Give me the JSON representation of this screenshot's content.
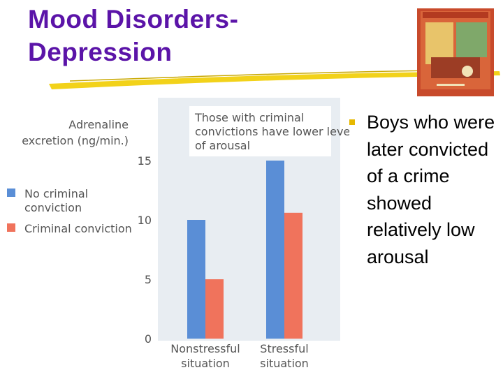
{
  "slide": {
    "title_line1": "Mood Disorders-",
    "title_line2": "Depression",
    "bullet": "Boys who were later convicted of a crime showed relatively low arousal"
  },
  "colors": {
    "title": "#5b14a8",
    "no_conviction": "#5a8ed6",
    "conviction": "#f0735c",
    "bullet": "#e6b800",
    "plot_bg": "#e8edf2"
  },
  "chart_data": {
    "type": "bar",
    "ylabel": "Adrenaline excretion (ng/min.)",
    "annotation": "Those with criminal convictions have lower levels of arousal",
    "categories": [
      "Nonstressful situation",
      "Stressful situation"
    ],
    "category_lines": [
      [
        "Nonstressful",
        "situation"
      ],
      [
        "Stressful",
        "situation"
      ]
    ],
    "series": [
      {
        "name": "No criminal conviction",
        "name_lines": [
          "No criminal",
          "conviction"
        ],
        "values": [
          10,
          15
        ],
        "color": "#5a8ed6"
      },
      {
        "name": "Criminal conviction",
        "name_lines": [
          "Criminal conviction"
        ],
        "values": [
          5,
          10.6
        ],
        "color": "#f0735c"
      }
    ],
    "yticks": [
      "0",
      "5",
      "10",
      "15"
    ],
    "ylim": [
      0,
      20
    ],
    "legend_position": "left",
    "grid": false
  }
}
